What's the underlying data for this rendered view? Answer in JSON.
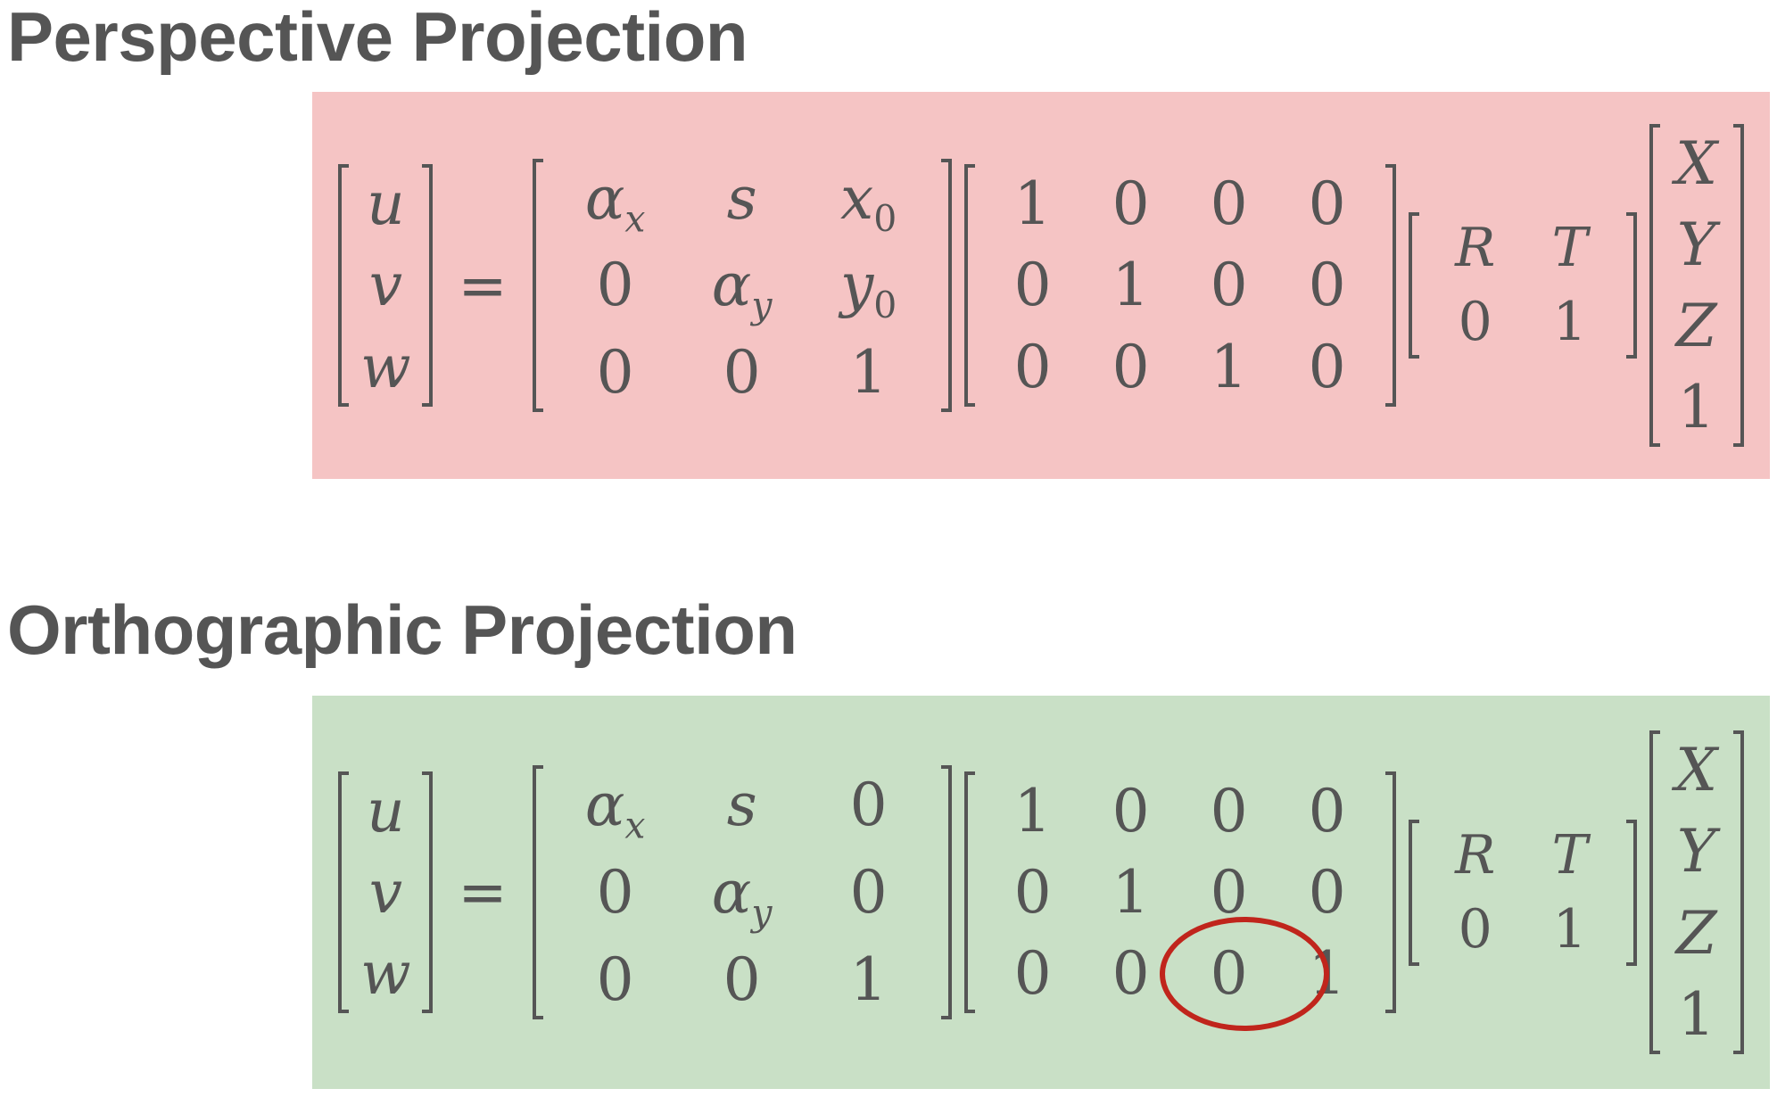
{
  "headings": {
    "perspective": "Perspective Projection",
    "orthographic": "Orthographic Projection"
  },
  "colors": {
    "text": "#555555",
    "perspective_panel": "#f5c4c4",
    "orthographic_panel": "#c9e0c6",
    "annotation_circle": "#c0251c"
  },
  "perspective": {
    "lhs": [
      "u",
      "v",
      "w"
    ],
    "equals": "=",
    "intrinsic": [
      [
        "αx",
        "s",
        "x0"
      ],
      [
        "0",
        "αy",
        "y0"
      ],
      [
        "0",
        "0",
        "1"
      ]
    ],
    "projection": [
      [
        "1",
        "0",
        "0",
        "0"
      ],
      [
        "0",
        "1",
        "0",
        "0"
      ],
      [
        "0",
        "0",
        "1",
        "0"
      ]
    ],
    "extrinsic": [
      [
        "R",
        "T"
      ],
      [
        "0",
        "1"
      ]
    ],
    "point": [
      "X",
      "Y",
      "Z",
      "1"
    ]
  },
  "orthographic": {
    "lhs": [
      "u",
      "v",
      "w"
    ],
    "equals": "=",
    "intrinsic": [
      [
        "αx",
        "s",
        "0"
      ],
      [
        "0",
        "αy",
        "0"
      ],
      [
        "0",
        "0",
        "1"
      ]
    ],
    "projection": [
      [
        "1",
        "0",
        "0",
        "0"
      ],
      [
        "0",
        "1",
        "0",
        "0"
      ],
      [
        "0",
        "0",
        "0",
        "1"
      ]
    ],
    "extrinsic": [
      [
        "R",
        "T"
      ],
      [
        "0",
        "1"
      ]
    ],
    "point": [
      "X",
      "Y",
      "Z",
      "1"
    ]
  },
  "annotation": {
    "shape": "circle",
    "highlights": "orthographic.projection row 3, columns 3-4"
  }
}
